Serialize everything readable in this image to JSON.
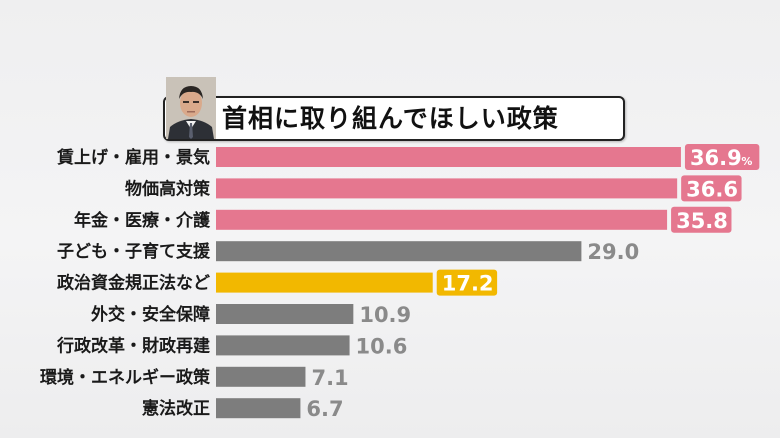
{
  "chart_data": {
    "type": "bar",
    "orientation": "horizontal",
    "title": "首相に取り組んでほしい政策",
    "categories": [
      "賃上げ・雇用・景気",
      "物価高対策",
      "年金・医療・介護",
      "子ども・子育て支援",
      "政治資金規正法など",
      "外交・安全保障",
      "行政改革・財政再建",
      "環境・エネルギー政策",
      "憲法改正"
    ],
    "values": [
      36.9,
      36.6,
      35.8,
      29.0,
      17.2,
      10.9,
      10.6,
      7.1,
      6.7
    ],
    "value_labels": [
      "36.9",
      "36.6",
      "35.8",
      "29.0",
      "17.2",
      "10.9",
      "10.6",
      "7.1",
      "6.7"
    ],
    "unit": "%",
    "bar_colors": [
      "#e5778f",
      "#e5778f",
      "#e5778f",
      "#7d7d7d",
      "#f2b800",
      "#7d7d7d",
      "#7d7d7d",
      "#7d7d7d",
      "#7d7d7d"
    ],
    "label_style": [
      "boxed",
      "boxed",
      "boxed",
      "plain",
      "boxed",
      "plain",
      "plain",
      "plain",
      "plain"
    ],
    "xlim": [
      0,
      40
    ],
    "grid": false,
    "legend": "none"
  }
}
